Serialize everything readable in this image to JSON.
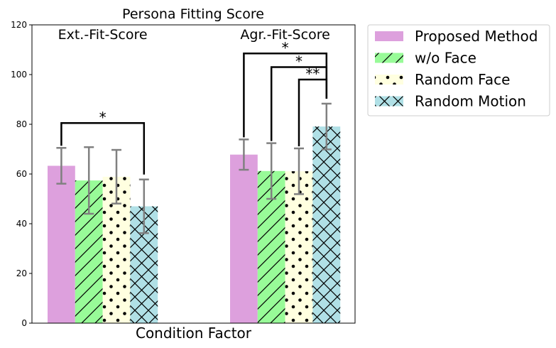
{
  "chart_data": {
    "type": "bar",
    "title": "Persona Fitting Score",
    "xlabel": "Condition Factor",
    "ylabel": "",
    "ylim": [
      0,
      120
    ],
    "yticks": [
      0,
      20,
      40,
      60,
      80,
      100,
      120
    ],
    "categories": [
      "Ext.-Fit-Score",
      "Agr.-Fit-Score"
    ],
    "series": [
      {
        "name": "Proposed Method",
        "color": "#dda0dd",
        "pattern": "none",
        "values": [
          63.3,
          67.8
        ],
        "errors": [
          7.2,
          6.1
        ]
      },
      {
        "name": "w/o Face",
        "color": "#98fb98",
        "pattern": "diagonal",
        "values": [
          57.4,
          61.2
        ],
        "errors": [
          13.4,
          11.2
        ]
      },
      {
        "name": "Random Face",
        "color": "#ffffe0",
        "pattern": "dots",
        "values": [
          58.9,
          61.1
        ],
        "errors": [
          10.8,
          9.2
        ]
      },
      {
        "name": "Random Motion",
        "color": "#b0e0e6",
        "pattern": "crosshatch",
        "values": [
          47.0,
          79.1
        ],
        "errors": [
          10.8,
          9.2
        ]
      }
    ],
    "significance": [
      {
        "category": 0,
        "from_series": 0,
        "to_series": 3,
        "label": "*",
        "level": 80.5
      },
      {
        "category": 1,
        "from_series": 0,
        "to_series": 3,
        "label": "*",
        "level": 108.5
      },
      {
        "category": 1,
        "from_series": 1,
        "to_series": 3,
        "label": "*",
        "level": 103.0
      },
      {
        "category": 1,
        "from_series": 2,
        "to_series": 3,
        "label": "**",
        "level": 98.0
      }
    ],
    "legend": "outside-top-right",
    "grid": false
  }
}
